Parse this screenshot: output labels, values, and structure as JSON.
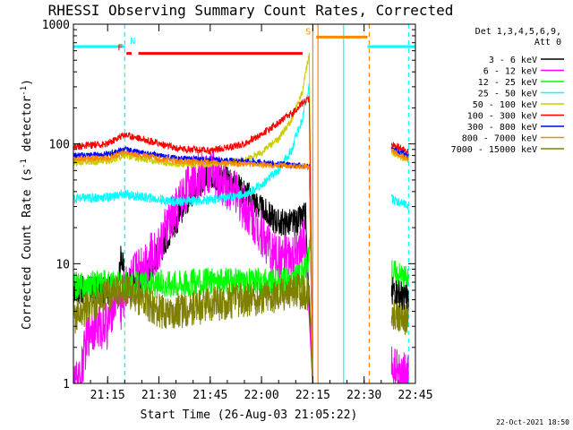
{
  "chart_data": {
    "type": "line",
    "title": "RHESSI Observing Summary Count Rates, Corrected",
    "xlabel": "Start Time (26-Aug-03 21:05:22)",
    "ylabel_main": "Corrected Count Rate (s",
    "ylabel_sup1": "-1",
    "ylabel_mid": " detector",
    "ylabel_sup2": "-1",
    "ylabel_end": ")",
    "timestamp": "22-Oct-2021 18:50",
    "x_range_minutes": [
      0,
      100
    ],
    "y_scale": "log",
    "ylim": [
      1,
      1000
    ],
    "x_ticks": [
      {
        "min": 10,
        "label": "21:15"
      },
      {
        "min": 25,
        "label": "21:30"
      },
      {
        "min": 40,
        "label": "21:45"
      },
      {
        "min": 55,
        "label": "22:00"
      },
      {
        "min": 70,
        "label": "22:15"
      },
      {
        "min": 85,
        "label": "22:30"
      },
      {
        "min": 100,
        "label": "22:45"
      }
    ],
    "y_ticks": [
      {
        "value": 1,
        "label": "1"
      },
      {
        "value": 10,
        "label": "10"
      },
      {
        "value": 100,
        "label": "100"
      },
      {
        "value": 1000,
        "label": "1000"
      }
    ],
    "legend_header": [
      "Det 1,3,4,5,6,9,",
      "Att 0"
    ],
    "legend_position": "right",
    "series": [
      {
        "name": "3 - 6 keV",
        "color": "#000000",
        "points": [
          [
            0,
            6
          ],
          [
            5,
            6
          ],
          [
            10,
            6
          ],
          [
            13,
            6
          ],
          [
            14,
            12
          ],
          [
            15,
            7
          ],
          [
            20,
            7
          ],
          [
            25,
            12
          ],
          [
            30,
            22
          ],
          [
            35,
            40
          ],
          [
            40,
            55
          ],
          [
            45,
            50
          ],
          [
            50,
            40
          ],
          [
            55,
            28
          ],
          [
            60,
            22
          ],
          [
            65,
            22
          ],
          [
            68,
            25
          ],
          [
            70,
            0
          ]
        ]
      },
      {
        "name": "6 - 12 keV",
        "color": "#ff00ff",
        "points": [
          [
            0,
            1
          ],
          [
            2,
            1
          ],
          [
            5,
            3
          ],
          [
            10,
            3
          ],
          [
            13,
            6
          ],
          [
            14,
            4
          ],
          [
            15,
            6
          ],
          [
            20,
            10
          ],
          [
            25,
            13
          ],
          [
            30,
            28
          ],
          [
            35,
            52
          ],
          [
            40,
            58
          ],
          [
            45,
            45
          ],
          [
            50,
            30
          ],
          [
            55,
            18
          ],
          [
            58,
            12
          ],
          [
            60,
            11
          ],
          [
            65,
            11
          ],
          [
            68,
            16
          ],
          [
            70,
            0
          ]
        ]
      },
      {
        "name": "12 - 25 keV",
        "color": "#00ff00",
        "points": [
          [
            0,
            6.5
          ],
          [
            10,
            6.8
          ],
          [
            20,
            6.5
          ],
          [
            30,
            7
          ],
          [
            40,
            7
          ],
          [
            50,
            7
          ],
          [
            60,
            7
          ],
          [
            65,
            7.5
          ],
          [
            68,
            9
          ],
          [
            69.5,
            14
          ],
          [
            70,
            0
          ]
        ]
      },
      {
        "name": "25 - 50 keV",
        "color": "#00ffff",
        "points": [
          [
            0,
            35
          ],
          [
            10,
            36
          ],
          [
            15,
            38
          ],
          [
            20,
            36
          ],
          [
            30,
            33
          ],
          [
            40,
            34
          ],
          [
            50,
            38
          ],
          [
            55,
            45
          ],
          [
            60,
            60
          ],
          [
            64,
            90
          ],
          [
            67,
            160
          ],
          [
            69,
            300
          ],
          [
            70,
            0
          ]
        ]
      },
      {
        "name": "50 - 100 keV",
        "color": "#cccc00",
        "points": [
          [
            0,
            70
          ],
          [
            10,
            72
          ],
          [
            15,
            80
          ],
          [
            20,
            75
          ],
          [
            30,
            68
          ],
          [
            40,
            68
          ],
          [
            50,
            72
          ],
          [
            55,
            85
          ],
          [
            60,
            110
          ],
          [
            64,
            160
          ],
          [
            67,
            270
          ],
          [
            69,
            550
          ],
          [
            70,
            0
          ]
        ]
      },
      {
        "name": "100 - 300 keV",
        "color": "#ff0000",
        "points": [
          [
            0,
            95
          ],
          [
            10,
            100
          ],
          [
            15,
            120
          ],
          [
            20,
            110
          ],
          [
            30,
            92
          ],
          [
            40,
            88
          ],
          [
            50,
            100
          ],
          [
            55,
            120
          ],
          [
            60,
            150
          ],
          [
            64,
            180
          ],
          [
            67,
            220
          ],
          [
            69,
            240
          ],
          [
            70,
            0
          ]
        ]
      },
      {
        "name": "300 - 800 keV",
        "color": "#0000ff",
        "points": [
          [
            0,
            80
          ],
          [
            10,
            82
          ],
          [
            15,
            90
          ],
          [
            20,
            84
          ],
          [
            30,
            76
          ],
          [
            40,
            74
          ],
          [
            50,
            72
          ],
          [
            60,
            68
          ],
          [
            69,
            65
          ],
          [
            70,
            0
          ]
        ]
      },
      {
        "name": "800 - 7000 keV",
        "color": "#ff8800",
        "points": [
          [
            0,
            75
          ],
          [
            10,
            76
          ],
          [
            15,
            85
          ],
          [
            20,
            80
          ],
          [
            30,
            72
          ],
          [
            40,
            70
          ],
          [
            50,
            68
          ],
          [
            60,
            66
          ],
          [
            69,
            64
          ],
          [
            70,
            0
          ]
        ]
      },
      {
        "name": "7000 - 15000 keV",
        "color": "#808000",
        "points": [
          [
            0,
            3.5
          ],
          [
            5,
            4.5
          ],
          [
            10,
            5.5
          ],
          [
            13,
            6
          ],
          [
            15,
            6
          ],
          [
            20,
            5
          ],
          [
            25,
            4
          ],
          [
            30,
            4
          ],
          [
            40,
            4.5
          ],
          [
            50,
            5
          ],
          [
            60,
            5.5
          ],
          [
            65,
            6
          ],
          [
            69,
            5.5
          ],
          [
            70,
            0
          ]
        ]
      }
    ],
    "after_gap": {
      "start_min": 93,
      "end_min": 98,
      "values": [
        {
          "series": "100 - 300 keV",
          "y": 100
        },
        {
          "series": "50 - 100 keV",
          "y": 85
        },
        {
          "series": "300 - 800 keV",
          "y": 92
        },
        {
          "series": "800 - 7000 keV",
          "y": 88
        },
        {
          "series": "25 - 50 keV",
          "y": 35
        },
        {
          "series": "12 - 25 keV",
          "y": 8.5
        },
        {
          "series": "7000 - 15000 keV",
          "y": 4
        },
        {
          "series": "3 - 6 keV",
          "y": 6
        },
        {
          "series": "6 - 12 keV",
          "y": 1.3
        }
      ]
    },
    "flags": [
      {
        "label": "N",
        "color": "#00ffff",
        "y": 650,
        "spans": [
          [
            0,
            15
          ],
          [
            86,
            100
          ]
        ]
      },
      {
        "label": "F",
        "color": "#ff0000",
        "y": 570,
        "spans": [
          [
            15.5,
            17
          ],
          [
            19,
            67
          ]
        ]
      },
      {
        "label": "S",
        "color": "#ff8800",
        "y": 780,
        "spans": [
          [
            71,
            86
          ]
        ]
      }
    ],
    "vlines": [
      {
        "x_min": 15,
        "color": "#00ffff",
        "dashed": true
      },
      {
        "x_min": 70,
        "color": "#ff8800",
        "dashed": false
      },
      {
        "x_min": 71.5,
        "color": "#ff8800",
        "dashed": false
      },
      {
        "x_min": 79,
        "color": "#00ffff",
        "dashed": false
      },
      {
        "x_min": 86.5,
        "color": "#ff8800",
        "dashed": true
      },
      {
        "x_min": 98,
        "color": "#00ffff",
        "dashed": true
      }
    ]
  }
}
